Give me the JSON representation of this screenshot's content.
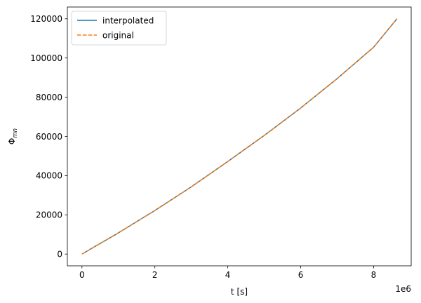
{
  "chart_data": {
    "type": "line",
    "xlabel": "t [s]",
    "ylabel_base": "Φ",
    "ylabel_sub": "mn",
    "x_offset_text": "1e6",
    "xlim": [
      -400000,
      9030000
    ],
    "ylim": [
      -6000,
      126000
    ],
    "x_ticks": [
      0,
      2000000,
      4000000,
      6000000,
      8000000
    ],
    "x_tick_labels": [
      "0",
      "2",
      "4",
      "6",
      "8"
    ],
    "y_ticks": [
      0,
      20000,
      40000,
      60000,
      80000,
      100000,
      120000
    ],
    "y_tick_labels": [
      "0",
      "20000",
      "40000",
      "60000",
      "80000",
      "100000",
      "120000"
    ],
    "legend_position": "upper left",
    "series": [
      {
        "name": "interpolated",
        "color": "#1f77b4",
        "style": "solid",
        "x": [
          0,
          1000000,
          2000000,
          3000000,
          4000000,
          5000000,
          6000000,
          7000000,
          8000000,
          8640000
        ],
        "y": [
          0,
          10800,
          22200,
          34300,
          47200,
          60500,
          74500,
          89500,
          105500,
          120000
        ]
      },
      {
        "name": "original",
        "color": "#ff7f0e",
        "style": "dashed",
        "x": [
          0,
          1000000,
          2000000,
          3000000,
          4000000,
          5000000,
          6000000,
          7000000,
          8000000,
          8640000
        ],
        "y": [
          0,
          10800,
          22200,
          34300,
          47200,
          60500,
          74500,
          89500,
          105500,
          120000
        ]
      }
    ]
  }
}
